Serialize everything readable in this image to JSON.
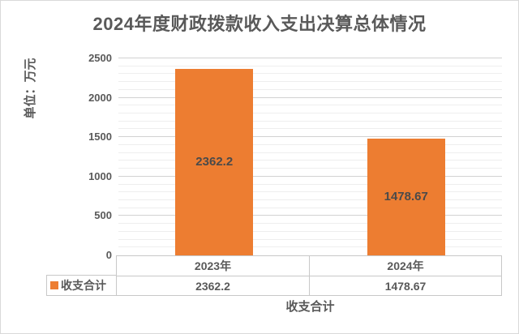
{
  "title": "2024年度财政拨款收入支出决算总体情况",
  "chart_data": {
    "type": "bar",
    "title": "2024年度财政拨款收入支出决算总体情况",
    "categories": [
      "2023年",
      "2024年"
    ],
    "series": [
      {
        "name": "收支合计",
        "values": [
          2362.2,
          1478.67
        ]
      }
    ],
    "value_labels": [
      "2362.2",
      "1478.67"
    ],
    "xlabel": "收支合计",
    "ylabel": "单位：万元",
    "ylim": [
      0,
      2500
    ],
    "ytick_step": 500,
    "ytick_minor_step": 100,
    "ytick_labels": [
      "0",
      "500",
      "1000",
      "1500",
      "2000",
      "2500"
    ],
    "grid": "major and minor horizontal gridlines",
    "legend_position": "data table, left of value row",
    "bar_color": "#ED7D31",
    "text_color": "#595959",
    "data_table": {
      "legend_label": "收支合计",
      "columns": [
        "2023年",
        "2024年"
      ],
      "values": [
        "2362.2",
        "1478.67"
      ]
    }
  }
}
